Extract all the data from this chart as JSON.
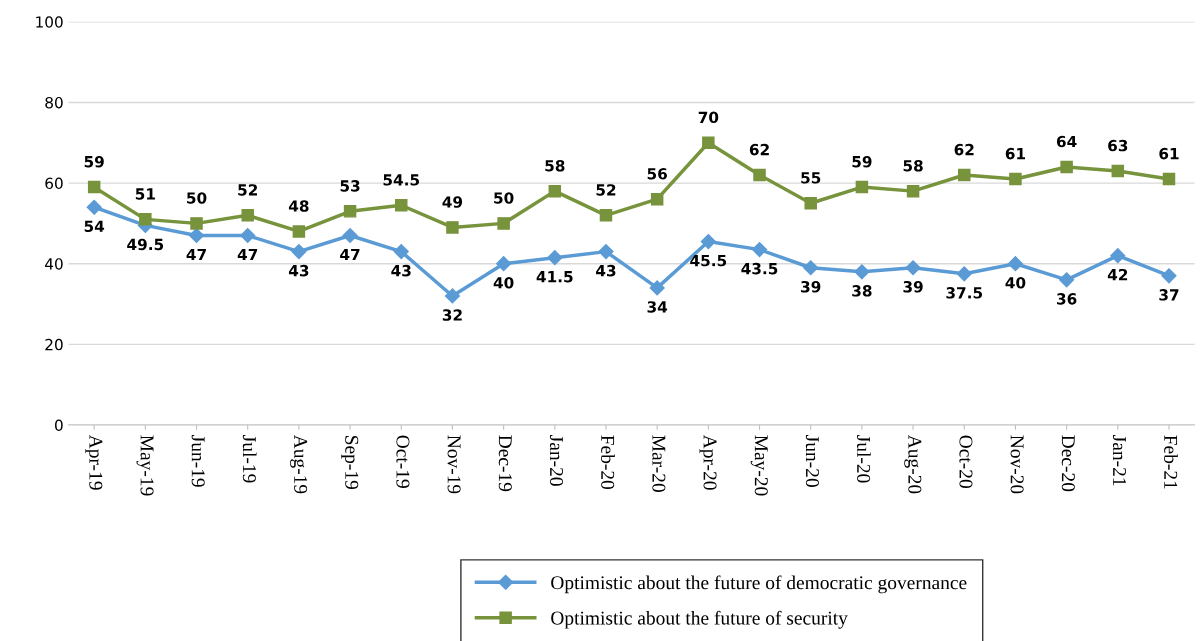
{
  "chart_data": {
    "type": "line",
    "categories": [
      "Apr-19",
      "May-19",
      "Jun-19",
      "Jul-19",
      "Aug-19",
      "Sep-19",
      "Oct-19",
      "Nov-19",
      "Dec-19",
      "Jan-20",
      "Feb-20",
      "Mar-20",
      "Apr-20",
      "May-20",
      "Jun-20",
      "Jul-20",
      "Aug-20",
      "Oct-20",
      "Nov-20",
      "Dec-20",
      "Jan-21",
      "Feb-21"
    ],
    "series": [
      {
        "name": "Optimistic about the future of democratic governance",
        "color": "#5b9bd5",
        "marker": "diamond",
        "values": [
          54,
          49.5,
          47,
          47,
          43,
          47,
          43,
          32,
          40,
          41.5,
          43,
          34,
          45.5,
          43.5,
          39,
          38,
          39,
          37.5,
          40,
          36,
          42,
          37
        ]
      },
      {
        "name": "Optimistic about the future of security",
        "color": "#77933c",
        "marker": "square",
        "values": [
          59,
          51,
          50,
          52,
          48,
          53,
          54.5,
          49,
          50,
          58,
          52,
          56,
          70,
          62,
          55,
          59,
          58,
          62,
          61,
          64,
          63,
          61
        ]
      }
    ],
    "ylim": [
      0,
      100
    ],
    "yticks": [
      0,
      20,
      40,
      60,
      80,
      100
    ],
    "grid": "y",
    "legend": "bottom",
    "data_labels": true,
    "line_style": "solid"
  }
}
